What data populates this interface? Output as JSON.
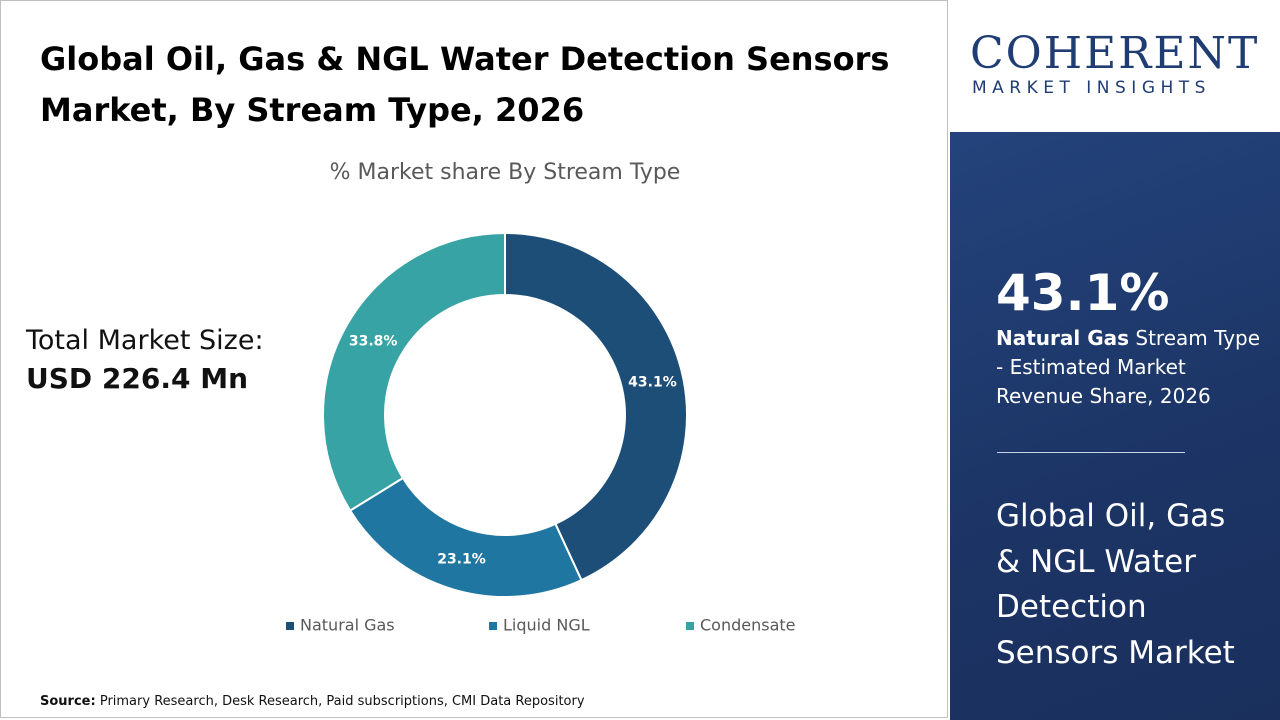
{
  "chart_data": {
    "type": "donut",
    "title": "Global Oil, Gas & NGL Water Detection Sensors Market, By Stream Type, 2026",
    "subtitle": "% Market share By Stream Type",
    "categories": [
      "Natural Gas",
      "Liquid NGL",
      "Condensate"
    ],
    "values": [
      43.1,
      23.1,
      33.8
    ],
    "value_labels": [
      "43.1%",
      "23.1%",
      "33.8%"
    ],
    "colors": [
      "#1d4e78",
      "#1f77a1",
      "#37a3a4"
    ],
    "legend": "bottom"
  },
  "total": {
    "label": "Total Market Size:",
    "value": "USD 226.4 Mn"
  },
  "source": {
    "label": "Source:",
    "text": "Primary Research, Desk Research, Paid subscriptions, CMI Data Repository"
  },
  "logo": {
    "name": "COHERENT",
    "tagline": "MARKET INSIGHTS"
  },
  "sidebar": {
    "highlight": "43.1%",
    "segment": "Natural Gas",
    "description": "Stream Type - Estimated Market Revenue Share, 2026",
    "market": "Global Oil, Gas & NGL Water Detection Sensors Market"
  }
}
